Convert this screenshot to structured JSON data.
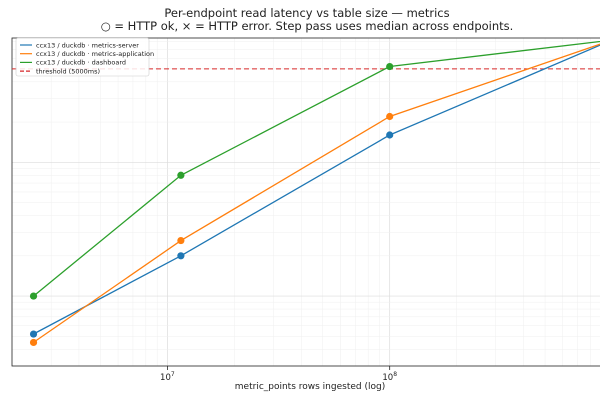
{
  "chart_data": {
    "type": "line",
    "title": "Per-endpoint read latency vs table size — metrics",
    "subtitle": "○ = HTTP ok,  × = HTTP error.  Step pass uses median across endpoints.",
    "xlabel": "metric_points rows ingested (log)",
    "ylabel": "",
    "x_scale": "log",
    "y_scale": "log",
    "grid": true,
    "legend_position": "top-left",
    "x_ticks": [
      {
        "value": 10000000,
        "label": "10",
        "exp": "7"
      },
      {
        "value": 100000000,
        "label": "10",
        "exp": "8"
      }
    ],
    "x": [
      2500000,
      11500000,
      100000000,
      1000000000
    ],
    "series": [
      {
        "name": "ccx13 / duckdb · metrics-server",
        "color": "#1f77b4",
        "values": [
          52,
          200,
          1600,
          8200
        ]
      },
      {
        "name": "ccx13 / duckdb · metrics-application",
        "color": "#ff7f0e",
        "values": [
          45,
          260,
          2200,
          8200
        ]
      },
      {
        "name": "ccx13 / duckdb · dashboard",
        "color": "#2ca02c",
        "values": [
          100,
          800,
          5200,
          8200
        ]
      }
    ],
    "threshold": {
      "name": "threshold (5000ms)",
      "value": 5000,
      "color": "#d62728"
    },
    "xlim": [
      2000000,
      1000000000
    ],
    "ylim": [
      30,
      8500
    ]
  }
}
